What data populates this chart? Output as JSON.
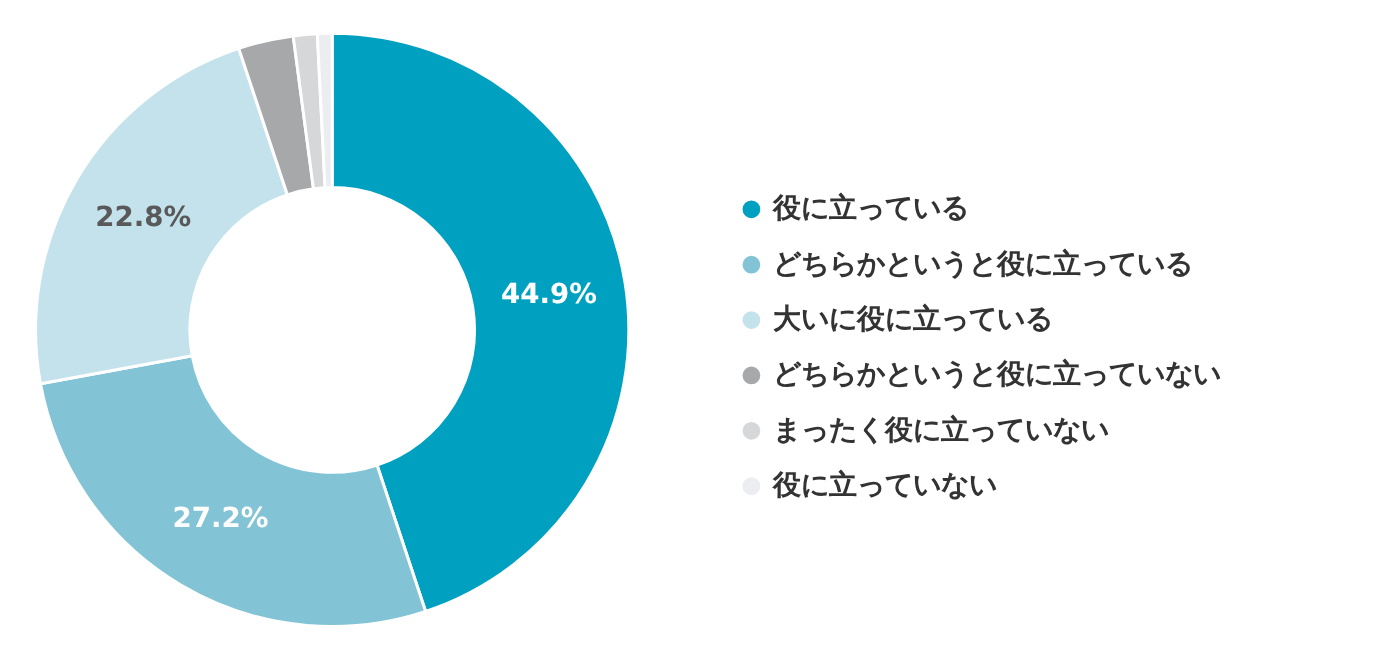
{
  "chart_data": {
    "type": "donut",
    "categories": [
      "役に立っている",
      "どちらかというと役に立っている",
      "大いに役に立っている",
      "どちらかというと役に立っていない",
      "まったく役に立っていない",
      "役に立っていない"
    ],
    "values": [
      44.9,
      27.2,
      22.8,
      3.0,
      1.3,
      0.8
    ],
    "colors": [
      "#00a0c0",
      "#82c4d6",
      "#c4e2eb",
      "#a6a8aa",
      "#d6d7d8",
      "#ebedf0"
    ],
    "value_labels": [
      "44.9%",
      "27.2%",
      "22.8%",
      null,
      null,
      null
    ],
    "legend": "right"
  }
}
